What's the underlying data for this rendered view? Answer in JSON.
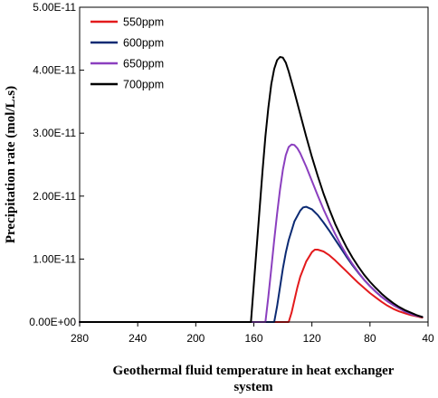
{
  "chart_data": {
    "type": "line",
    "xlabel_lines": [
      "Geothermal fluid temperature in heat exchanger",
      "system"
    ],
    "ylabel": "Precipitation rate (mol/L.s)",
    "xlim": [
      280,
      40
    ],
    "ylim": [
      0,
      5e-11
    ],
    "x_ticks": [
      280,
      240,
      200,
      160,
      120,
      80,
      40
    ],
    "y_ticks": [
      0,
      1e-11,
      2e-11,
      3e-11,
      4e-11,
      5e-11
    ],
    "y_tick_labels": [
      "0.00E+00",
      "1.00E-11",
      "2.00E-11",
      "3.00E-11",
      "4.00E-11",
      "5.00E-11"
    ],
    "x_tick_labels": [
      "280",
      "240",
      "200",
      "160",
      "120",
      "80",
      "40"
    ],
    "grid": false,
    "legend_position": "top-left",
    "series": [
      {
        "name": "550ppm",
        "color": "#e31a1c",
        "x": [
          280,
          136,
          134,
          132,
          130,
          128,
          124,
          120,
          118,
          116,
          112,
          108,
          104,
          100,
          96,
          92,
          88,
          84,
          80,
          76,
          72,
          68,
          64,
          60,
          56,
          52,
          48,
          44
        ],
        "y": [
          0,
          0,
          1.5e-12,
          3.5e-12,
          5.5e-12,
          7.2e-12,
          9.6e-12,
          1.11e-11,
          1.15e-11,
          1.15e-11,
          1.12e-11,
          1.06e-11,
          9.8e-12,
          8.9e-12,
          8e-12,
          7.1e-12,
          6.2e-12,
          5.4e-12,
          4.6e-12,
          3.9e-12,
          3.2e-12,
          2.6e-12,
          2.1e-12,
          1.7e-12,
          1.4e-12,
          1.1e-12,
          9e-13,
          7e-13
        ]
      },
      {
        "name": "600ppm",
        "color": "#0b2a73",
        "x": [
          280,
          146,
          144,
          142,
          140,
          138,
          136,
          132,
          128,
          126,
          124,
          120,
          116,
          112,
          108,
          104,
          100,
          96,
          92,
          88,
          84,
          80,
          76,
          72,
          68,
          64,
          60,
          56,
          52,
          48,
          44
        ],
        "y": [
          0,
          0,
          2.5e-12,
          5.5e-12,
          8.5e-12,
          1.1e-11,
          1.3e-11,
          1.6e-11,
          1.77e-11,
          1.82e-11,
          1.83e-11,
          1.79e-11,
          1.7e-11,
          1.58e-11,
          1.45e-11,
          1.31e-11,
          1.17e-11,
          1.03e-11,
          9e-12,
          7.8e-12,
          6.7e-12,
          5.7e-12,
          4.8e-12,
          4e-12,
          3.3e-12,
          2.7e-12,
          2.2e-12,
          1.7e-12,
          1.3e-12,
          1e-12,
          8e-13
        ]
      },
      {
        "name": "650ppm",
        "color": "#8b3fbf",
        "x": [
          280,
          152,
          150,
          148,
          146,
          144,
          142,
          140,
          138,
          136,
          134,
          132,
          130,
          128,
          124,
          120,
          116,
          112,
          108,
          104,
          100,
          96,
          92,
          88,
          84,
          80,
          76,
          72,
          68,
          64,
          60,
          56,
          52,
          48,
          44
        ],
        "y": [
          0,
          0,
          4e-12,
          8.5e-12,
          1.3e-11,
          1.72e-11,
          2.1e-11,
          2.42e-11,
          2.65e-11,
          2.78e-11,
          2.82e-11,
          2.81e-11,
          2.76e-11,
          2.68e-11,
          2.47e-11,
          2.24e-11,
          2.01e-11,
          1.79e-11,
          1.59e-11,
          1.4e-11,
          1.22e-11,
          1.06e-11,
          9.2e-12,
          7.9e-12,
          6.7e-12,
          5.7e-12,
          4.8e-12,
          4e-12,
          3.3e-12,
          2.7e-12,
          2.2e-12,
          1.7e-12,
          1.3e-12,
          1e-12,
          8e-13
        ]
      },
      {
        "name": "700ppm",
        "color": "#000000",
        "x": [
          280,
          162,
          160,
          158,
          156,
          154,
          152,
          150,
          148,
          146,
          144,
          142,
          140,
          138,
          136,
          132,
          128,
          124,
          120,
          116,
          112,
          108,
          104,
          100,
          96,
          92,
          88,
          84,
          80,
          76,
          72,
          68,
          64,
          60,
          56,
          52,
          48,
          44
        ],
        "y": [
          0,
          0,
          6e-12,
          1.2e-11,
          1.8e-11,
          2.4e-11,
          2.95e-11,
          3.4e-11,
          3.78e-11,
          4.02e-11,
          4.16e-11,
          4.21e-11,
          4.2e-11,
          4.12e-11,
          3.98e-11,
          3.65e-11,
          3.3e-11,
          2.95e-11,
          2.62e-11,
          2.32e-11,
          2.04e-11,
          1.79e-11,
          1.56e-11,
          1.36e-11,
          1.18e-11,
          1.02e-11,
          8.8e-12,
          7.5e-12,
          6.4e-12,
          5.4e-12,
          4.5e-12,
          3.7e-12,
          3e-12,
          2.4e-12,
          1.9e-12,
          1.5e-12,
          1.1e-12,
          8e-13
        ]
      }
    ]
  }
}
